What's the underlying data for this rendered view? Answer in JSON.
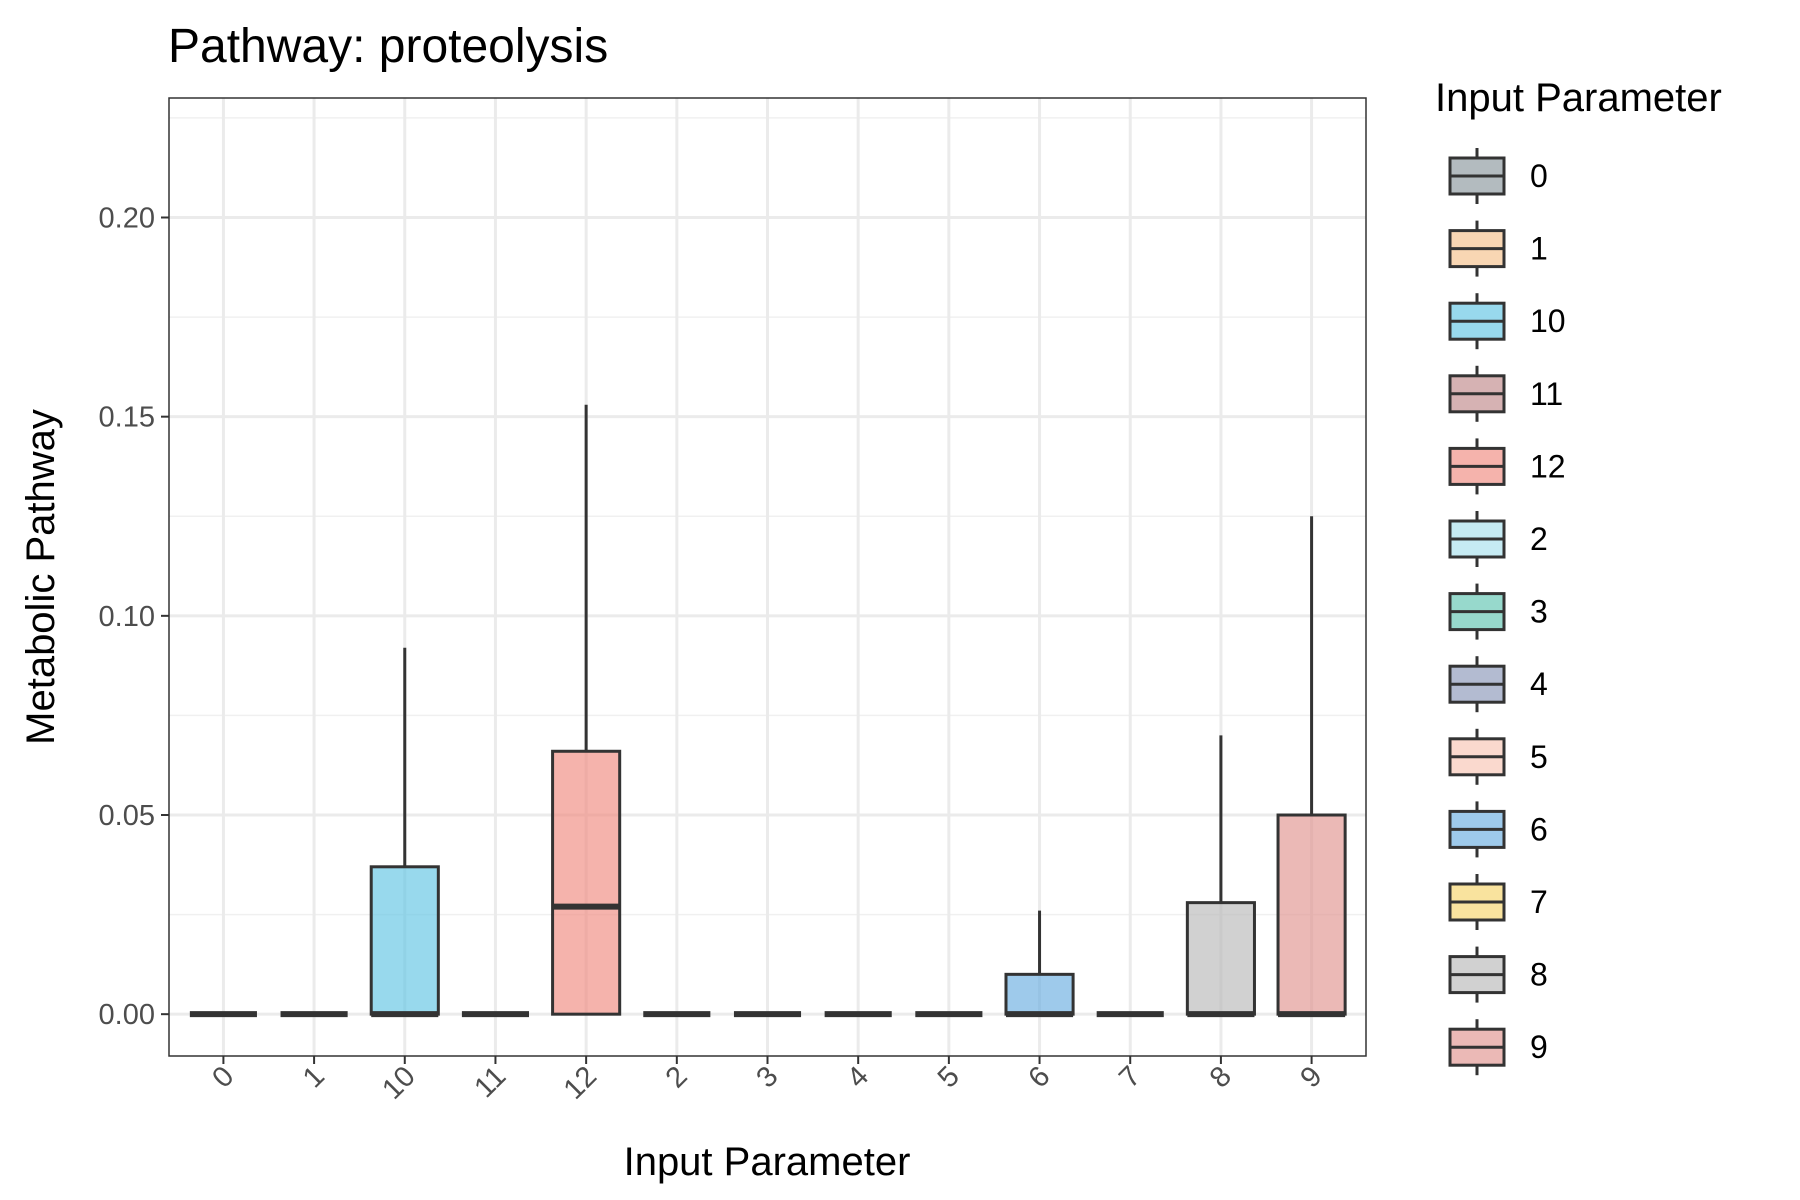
{
  "chart_data": {
    "type": "boxplot",
    "title": "Pathway: proteolysis",
    "xlabel": "Input Parameter",
    "ylabel": "Metabolic Pathway",
    "ylim": [
      -0.0105,
      0.23
    ],
    "yticks": [
      0.0,
      0.05,
      0.1,
      0.15,
      0.2
    ],
    "ytick_labels": [
      "0.00",
      "0.05",
      "0.10",
      "0.15",
      "0.20"
    ],
    "categories": [
      "0",
      "1",
      "10",
      "11",
      "12",
      "2",
      "3",
      "4",
      "5",
      "6",
      "7",
      "8",
      "9"
    ],
    "boxes": [
      {
        "category": "0",
        "whisker_low": 0,
        "q1": 0,
        "median": 0,
        "q3": 0,
        "whisker_high": 0
      },
      {
        "category": "1",
        "whisker_low": 0,
        "q1": 0,
        "median": 0,
        "q3": 0,
        "whisker_high": 0
      },
      {
        "category": "10",
        "whisker_low": 0,
        "q1": 0,
        "median": 0,
        "q3": 0.037,
        "whisker_high": 0.092
      },
      {
        "category": "11",
        "whisker_low": 0,
        "q1": 0,
        "median": 0,
        "q3": 0,
        "whisker_high": 0
      },
      {
        "category": "12",
        "whisker_low": 0,
        "q1": 0,
        "median": 0.027,
        "q3": 0.066,
        "whisker_high": 0.153
      },
      {
        "category": "2",
        "whisker_low": 0,
        "q1": 0,
        "median": 0,
        "q3": 0,
        "whisker_high": 0
      },
      {
        "category": "3",
        "whisker_low": 0,
        "q1": 0,
        "median": 0,
        "q3": 0,
        "whisker_high": 0
      },
      {
        "category": "4",
        "whisker_low": 0,
        "q1": 0,
        "median": 0,
        "q3": 0,
        "whisker_high": 0
      },
      {
        "category": "5",
        "whisker_low": 0,
        "q1": 0,
        "median": 0,
        "q3": 0,
        "whisker_high": 0
      },
      {
        "category": "6",
        "whisker_low": 0,
        "q1": 0,
        "median": 0,
        "q3": 0.01,
        "whisker_high": 0.026
      },
      {
        "category": "7",
        "whisker_low": 0,
        "q1": 0,
        "median": 0,
        "q3": 0,
        "whisker_high": 0
      },
      {
        "category": "8",
        "whisker_low": 0,
        "q1": 0,
        "median": 0,
        "q3": 0.028,
        "whisker_high": 0.07
      },
      {
        "category": "9",
        "whisker_low": 0,
        "q1": 0,
        "median": 0,
        "q3": 0.05,
        "whisker_high": 0.125
      }
    ],
    "colors": {
      "0": "#8a969c",
      "1": "#f5c08a",
      "10": "#61c4e3",
      "11": "#c0888a",
      "12": "#f08a80",
      "2": "#a8e0ec",
      "3": "#5fc4b0",
      "4": "#8a97b8",
      "5": "#f7c5b4",
      "6": "#6aaee0",
      "7": "#f6d46a",
      "8": "#b8b8b8",
      "9": "#e0938f"
    },
    "legend": {
      "title": "Input Parameter",
      "position": "right",
      "entries": [
        "0",
        "1",
        "10",
        "11",
        "12",
        "2",
        "3",
        "4",
        "5",
        "6",
        "7",
        "8",
        "9"
      ]
    },
    "grid": true
  }
}
